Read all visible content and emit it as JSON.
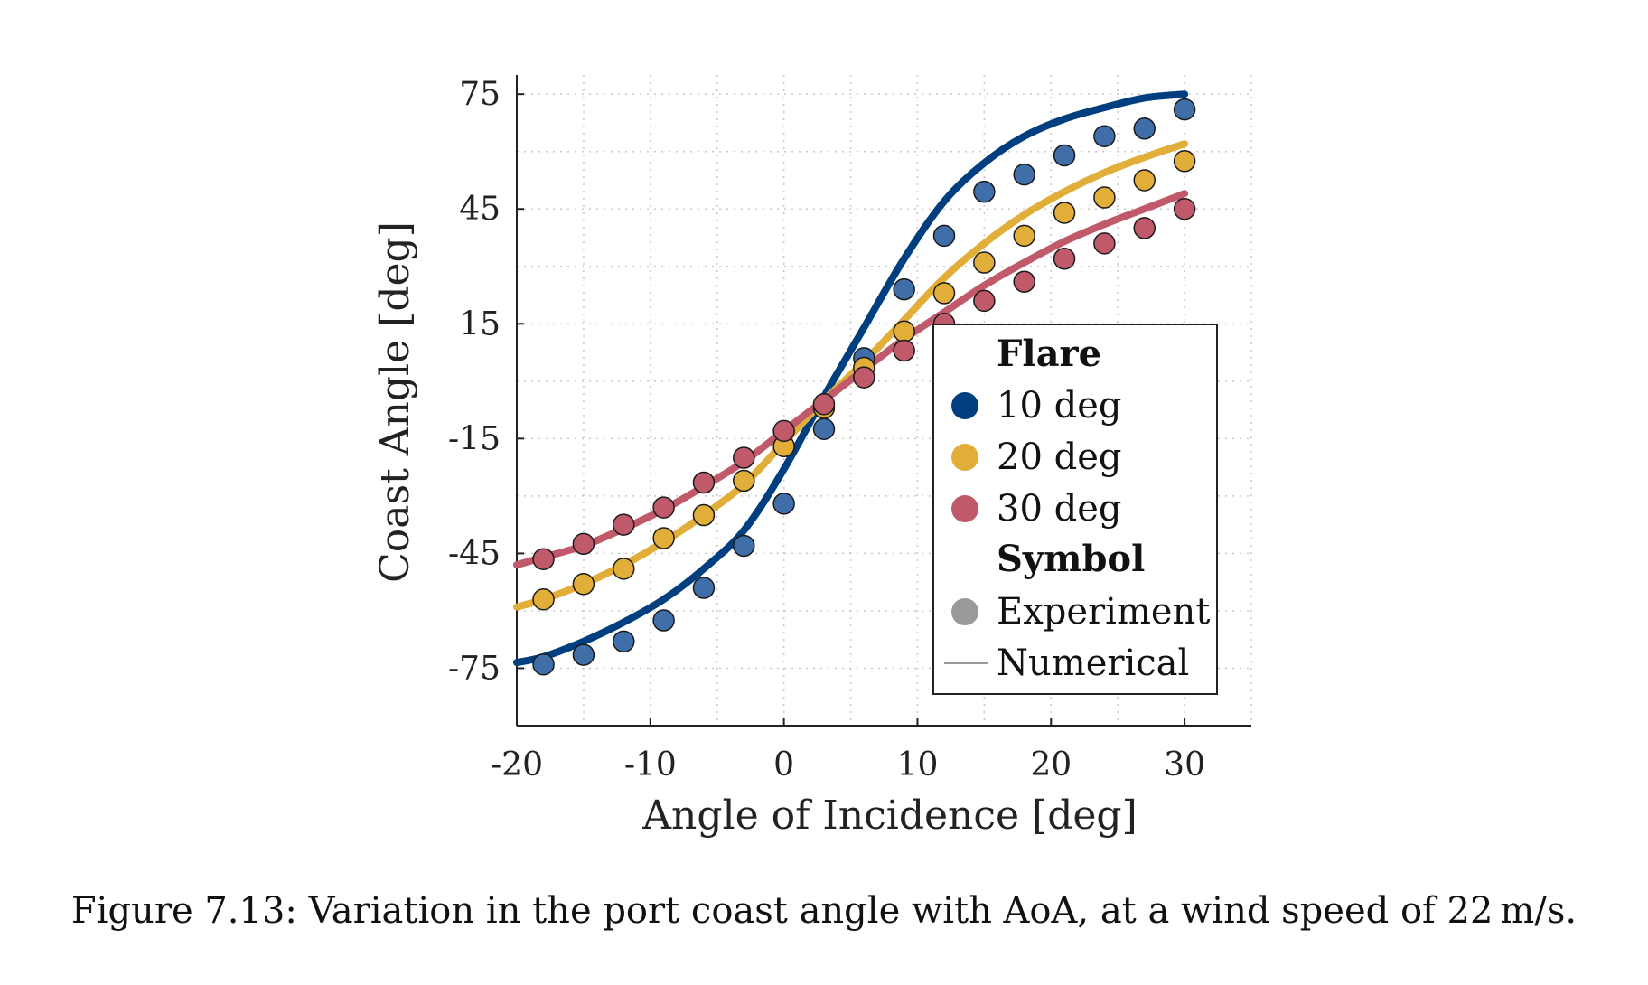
{
  "caption": "Figure 7.13: Variation in the port coast angle with AoA, at a wind speed of 22 m/s.",
  "chart_data": {
    "type": "line",
    "title": "",
    "xlabel": "Angle of Incidence [deg]",
    "ylabel": "Coast Angle [deg]",
    "xlim": [
      -20,
      35
    ],
    "ylim": [
      -90,
      80
    ],
    "x_ticks": [
      -20,
      -10,
      0,
      10,
      20,
      30
    ],
    "y_ticks": [
      -75,
      -45,
      -15,
      15,
      45,
      75
    ],
    "grid": true,
    "grid_style": "dotted",
    "legend": {
      "placement": "lower-right",
      "sections": [
        {
          "title": "Flare",
          "items": [
            {
              "label": "10 deg",
              "color": "#003f7f",
              "marker": "circle"
            },
            {
              "label": "20 deg",
              "color": "#e2ae3a",
              "marker": "circle"
            },
            {
              "label": "30 deg",
              "color": "#c05a6b",
              "marker": "circle"
            }
          ]
        },
        {
          "title": "Symbol",
          "items": [
            {
              "label": "Experiment",
              "color": "#999999",
              "marker": "circle"
            },
            {
              "label": "Numerical",
              "color": "#999999",
              "marker": "line"
            }
          ]
        }
      ]
    },
    "series": [
      {
        "flare": "10 deg",
        "kind": "numerical",
        "color": "#003f7f",
        "x": [
          -20,
          -18,
          -15,
          -12,
          -9,
          -6,
          -3,
          0,
          3,
          5,
          6,
          9,
          12,
          15,
          18,
          21,
          24,
          27,
          30
        ],
        "y": [
          -73.5,
          -72,
          -68,
          -63,
          -57,
          -49,
          -39,
          -23,
          -4,
          8,
          14,
          32,
          47,
          57,
          64,
          68.5,
          71.5,
          74,
          75
        ]
      },
      {
        "flare": "10 deg",
        "kind": "experiment",
        "color": "#3f6ea8",
        "x": [
          -18,
          -15,
          -12,
          -9,
          -6,
          -3,
          0,
          3,
          6,
          9,
          12,
          15,
          18,
          21,
          24,
          27,
          30
        ],
        "y": [
          -74,
          -71.5,
          -68,
          -62.5,
          -54,
          -43,
          -32,
          -12.5,
          6,
          24,
          38,
          49.5,
          54,
          59,
          64,
          66,
          71
        ]
      },
      {
        "flare": "20 deg",
        "kind": "numerical",
        "color": "#e2ae3a",
        "x": [
          -20,
          -18,
          -15,
          -12,
          -9,
          -6,
          -3,
          0,
          3,
          6,
          9,
          12,
          15,
          18,
          21,
          24,
          27,
          30
        ],
        "y": [
          -59,
          -57,
          -53,
          -48,
          -42,
          -35,
          -27,
          -16,
          -5,
          5,
          16,
          27,
          36,
          43.5,
          49.5,
          54.5,
          58.5,
          62
        ]
      },
      {
        "flare": "20 deg",
        "kind": "experiment",
        "color": "#e2ae3a",
        "x": [
          -18,
          -15,
          -12,
          -9,
          -6,
          -3,
          0,
          3,
          6,
          9,
          12,
          15,
          18,
          21,
          24,
          27,
          30
        ],
        "y": [
          -57,
          -53,
          -49,
          -41,
          -35,
          -26,
          -17,
          -7,
          3.5,
          13,
          23,
          31,
          38,
          44,
          48,
          52.5,
          57.5
        ]
      },
      {
        "flare": "30 deg",
        "kind": "numerical",
        "color": "#c05a6b",
        "x": [
          -20,
          -18,
          -15,
          -12,
          -9,
          -6,
          -3,
          0,
          3,
          6,
          9,
          12,
          15,
          18,
          21,
          24,
          27,
          30
        ],
        "y": [
          -48,
          -46,
          -43,
          -38.5,
          -33.5,
          -27.5,
          -21,
          -13,
          -5,
          3,
          11,
          18,
          25,
          31,
          36.5,
          41,
          45,
          49
        ]
      },
      {
        "flare": "30 deg",
        "kind": "experiment",
        "color": "#c05a6b",
        "x": [
          -18,
          -15,
          -12,
          -9,
          -6,
          -3,
          0,
          3,
          6,
          9,
          12,
          15,
          18,
          21,
          24,
          27,
          30
        ],
        "y": [
          -46.5,
          -42.5,
          -37.5,
          -33,
          -26.5,
          -20,
          -13,
          -6,
          1,
          8,
          15,
          21,
          26,
          32,
          36,
          40,
          45
        ]
      }
    ]
  }
}
